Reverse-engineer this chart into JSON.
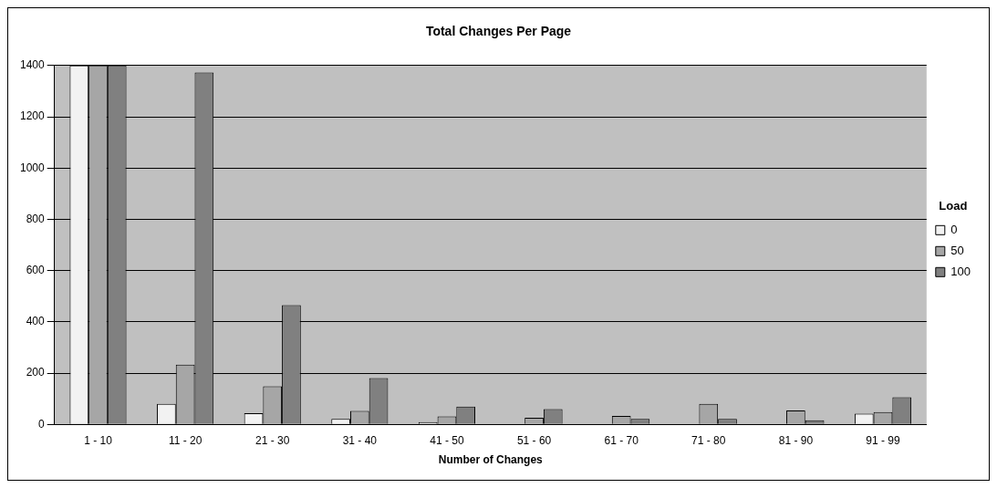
{
  "chart_data": {
    "type": "bar",
    "title": "Total Changes Per Page",
    "xlabel": "Number of Changes",
    "legend_title": "Load",
    "categories": [
      "1 - 10",
      "11 - 20",
      "21 - 30",
      "31 - 40",
      "41 - 50",
      "51 - 60",
      "61 - 70",
      "71 - 80",
      "81 - 90",
      "91 - 99"
    ],
    "series": [
      {
        "name": "0",
        "color": "#f2f2f2",
        "values": [
          1400,
          80,
          43,
          21,
          9,
          0,
          0,
          0,
          0,
          42
        ]
      },
      {
        "name": "50",
        "color": "#a6a6a6",
        "values": [
          1400,
          233,
          148,
          52,
          31,
          26,
          33,
          80,
          54,
          48
        ]
      },
      {
        "name": "100",
        "color": "#808080",
        "values": [
          1400,
          1373,
          465,
          180,
          69,
          59,
          21,
          21,
          16,
          106
        ]
      }
    ],
    "ylim": [
      0,
      1400
    ],
    "yticks": [
      0,
      200,
      400,
      600,
      800,
      1000,
      1200,
      1400
    ],
    "grid": "y",
    "legend": "right"
  }
}
